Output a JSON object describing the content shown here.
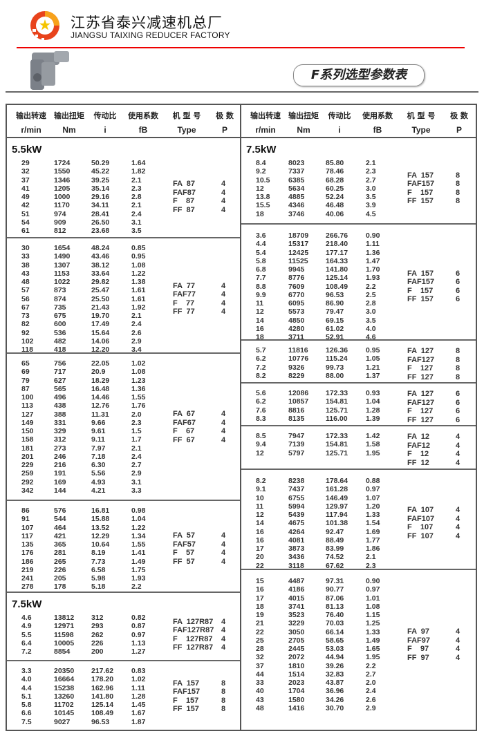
{
  "header": {
    "company_cn": "江苏省泰兴减速机总厂",
    "company_en": "JIANGSU TAIXING REDUCER FACTORY",
    "series_title": "F系列选型参数表",
    "accent_color": "#e00000"
  },
  "columns_cn": [
    "输出转速",
    "输出扭矩",
    "传动比",
    "使用系数",
    "机 型 号",
    "极  数"
  ],
  "columns_en": [
    "r/min",
    "Nm",
    "i",
    "fB",
    "Type",
    "P"
  ],
  "left": [
    {
      "power": "5.5kW",
      "rows": [
        [
          "29",
          "1724",
          "50.29",
          "1.64"
        ],
        [
          "32",
          "1550",
          "45.22",
          "1.82"
        ],
        [
          "37",
          "1346",
          "39.25",
          "2.1"
        ],
        [
          "41",
          "1205",
          "35.14",
          "2.3"
        ],
        [
          "49",
          "1000",
          "29.16",
          "2.8"
        ],
        [
          "42",
          "1170",
          "34.11",
          "2.1"
        ],
        [
          "51",
          "974",
          "28.41",
          "2.4"
        ],
        [
          "54",
          "909",
          "26.50",
          "3.1"
        ],
        [
          "61",
          "812",
          "23.68",
          "3.5"
        ]
      ],
      "types": [
        "FA  87",
        "FAF87",
        "F    87",
        "FF  87"
      ],
      "poles": [
        "4",
        "4",
        "4",
        "4"
      ]
    },
    {
      "rows": [
        [
          "30",
          "1654",
          "48.24",
          "0.85"
        ],
        [
          "33",
          "1490",
          "43.46",
          "0.95"
        ],
        [
          "38",
          "1307",
          "38.12",
          "1.08"
        ],
        [
          "43",
          "1153",
          "33.64",
          "1.22"
        ],
        [
          "48",
          "1022",
          "29.82",
          "1.38"
        ],
        [
          "57",
          "873",
          "25.47",
          "1.61"
        ],
        [
          "56",
          "874",
          "25.50",
          "1.61"
        ],
        [
          "67",
          "735",
          "21.43",
          "1.92"
        ],
        [
          "73",
          "675",
          "19.70",
          "2.1"
        ],
        [
          "82",
          "600",
          "17.49",
          "2.4"
        ],
        [
          "92",
          "536",
          "15.64",
          "2.6"
        ],
        [
          "102",
          "482",
          "14.06",
          "2.9"
        ],
        [
          "118",
          "418",
          "12.20",
          "3.4"
        ]
      ],
      "types": [
        "FA  77",
        "FAF77",
        "F    77",
        "FF  77"
      ],
      "poles": [
        "4",
        "4",
        "4",
        "4"
      ]
    },
    {
      "rows": [
        [
          "65",
          "756",
          "22.05",
          "1.02"
        ],
        [
          "69",
          "717",
          "20.9",
          "1.08"
        ],
        [
          "79",
          "627",
          "18.29",
          "1.23"
        ],
        [
          "87",
          "565",
          "16.48",
          "1.36"
        ],
        [
          "100",
          "496",
          "14.46",
          "1.55"
        ],
        [
          "113",
          "438",
          "12.76",
          "1.76"
        ],
        [
          "127",
          "388",
          "11.31",
          "2.0"
        ],
        [
          "149",
          "331",
          "9.66",
          "2.3"
        ],
        [
          "150",
          "329",
          "9.61",
          "1.5"
        ],
        [
          "158",
          "312",
          "9.11",
          "1.7"
        ],
        [
          "181",
          "273",
          "7.97",
          "2.1"
        ],
        [
          "201",
          "246",
          "7.18",
          "2.4"
        ],
        [
          "229",
          "216",
          "6.30",
          "2.7"
        ],
        [
          "259",
          "191",
          "5.56",
          "2.9"
        ],
        [
          "292",
          "169",
          "4.93",
          "3.1"
        ],
        [
          "342",
          "144",
          "4.21",
          "3.3"
        ]
      ],
      "types": [
        "FA  67",
        "FAF67",
        "F    67",
        "FF  67"
      ],
      "poles": [
        "4",
        "4",
        "4",
        "4"
      ]
    },
    {
      "rows": [
        [
          "86",
          "576",
          "16.81",
          "0.98"
        ],
        [
          "91",
          "544",
          "15.88",
          "1.04"
        ],
        [
          "107",
          "464",
          "13.52",
          "1.22"
        ],
        [
          "117",
          "421",
          "12.29",
          "1.34"
        ],
        [
          "135",
          "365",
          "10.64",
          "1.55"
        ],
        [
          "176",
          "281",
          "8.19",
          "1.41"
        ],
        [
          "186",
          "265",
          "7.73",
          "1.49"
        ],
        [
          "219",
          "226",
          "6.58",
          "1.75"
        ],
        [
          "241",
          "205",
          "5.98",
          "1.93"
        ],
        [
          "278",
          "178",
          "5.18",
          "2.2"
        ]
      ],
      "types": [
        "FA  57",
        "FAF57",
        "F    57",
        "FF  57"
      ],
      "poles": [
        "4",
        "4",
        "4",
        "4"
      ]
    },
    {
      "power": "7.5kW",
      "rows": [
        [
          "4.6",
          "13812",
          "312",
          "0.82"
        ],
        [
          "4.9",
          "12971",
          "293",
          "0.87"
        ],
        [
          "5.5",
          "11598",
          "262",
          "0.97"
        ],
        [
          "6.4",
          "10005",
          "226",
          "1.13"
        ],
        [
          "7.2",
          "8854",
          "200",
          "1.27"
        ]
      ],
      "types": [
        "FA  127R87",
        "FAF127R87",
        "F    127R87",
        "FF  127R87"
      ],
      "poles": [
        "4",
        "4",
        "4",
        "4"
      ]
    },
    {
      "rows": [
        [
          "3.3",
          "20350",
          "217.62",
          "0.83"
        ],
        [
          "4.0",
          "16664",
          "178.20",
          "1.02"
        ],
        [
          "4.4",
          "15238",
          "162.96",
          "1.11"
        ],
        [
          "5.1",
          "13260",
          "141.80",
          "1.28"
        ],
        [
          "5.8",
          "11702",
          "125.14",
          "1.45"
        ],
        [
          "6.6",
          "10145",
          "108.49",
          "1.67"
        ],
        [
          "7.5",
          "9027",
          "96.53",
          "1.87"
        ]
      ],
      "types": [
        "FA  157",
        "FAF157",
        "F    157",
        "FF  157"
      ],
      "poles": [
        "8",
        "8",
        "8",
        "8"
      ]
    }
  ],
  "right": [
    {
      "power": "7.5kW",
      "rows": [
        [
          "8.4",
          "8023",
          "85.80",
          "2.1"
        ],
        [
          "9.2",
          "7337",
          "78.46",
          "2.3"
        ],
        [
          "10.5",
          "6385",
          "68.28",
          "2.7"
        ],
        [
          "12",
          "5634",
          "60.25",
          "3.0"
        ],
        [
          "13.8",
          "4885",
          "52.24",
          "3.5"
        ],
        [
          "15.5",
          "4346",
          "46.48",
          "3.9"
        ],
        [
          "18",
          "3746",
          "40.06",
          "4.5"
        ]
      ],
      "types": [
        "FA  157",
        "FAF157",
        "F    157",
        "FF  157"
      ],
      "poles": [
        "8",
        "8",
        "8",
        "8"
      ]
    },
    {
      "rows": [
        [
          "3.6",
          "18709",
          "266.76",
          "0.90"
        ],
        [
          "4.4",
          "15317",
          "218.40",
          "1.11"
        ],
        [
          "5.4",
          "12425",
          "177.17",
          "1.36"
        ],
        [
          "5.8",
          "11525",
          "164.33",
          "1.47"
        ],
        [
          "6.8",
          "9945",
          "141.80",
          "1.70"
        ],
        [
          "7.7",
          "8776",
          "125.14",
          "1.93"
        ],
        [
          "8.8",
          "7609",
          "108.49",
          "2.2"
        ],
        [
          "9.9",
          "6770",
          "96.53",
          "2.5"
        ],
        [
          "11",
          "6095",
          "86.90",
          "2.8"
        ],
        [
          "12",
          "5573",
          "79.47",
          "3.0"
        ],
        [
          "14",
          "4850",
          "69.15",
          "3.5"
        ],
        [
          "16",
          "4280",
          "61.02",
          "4.0"
        ],
        [
          "18",
          "3711",
          "52.91",
          "4.6"
        ]
      ],
      "types": [
        "FA  157",
        "FAF157",
        "F    157",
        "FF  157"
      ],
      "poles": [
        "6",
        "6",
        "6",
        "6"
      ]
    },
    {
      "rows": [
        [
          "5.7",
          "11816",
          "126.36",
          "0.95"
        ],
        [
          "6.2",
          "10776",
          "115.24",
          "1.05"
        ],
        [
          "7.2",
          "9326",
          "99.73",
          "1.21"
        ],
        [
          "8.2",
          "8229",
          "88.00",
          "1.37"
        ]
      ],
      "types": [
        "FA  127",
        "FAF127",
        "F    127",
        "FF  127"
      ],
      "poles": [
        "8",
        "8",
        "8",
        "8"
      ]
    },
    {
      "rows": [
        [
          "5.6",
          "12086",
          "172.33",
          "0.93"
        ],
        [
          "6.2",
          "10857",
          "154.81",
          "1.04"
        ],
        [
          "7.6",
          "8816",
          "125.71",
          "1.28"
        ],
        [
          "8.3",
          "8135",
          "116.00",
          "1.39"
        ]
      ],
      "types": [
        "FA  127",
        "FAF127",
        "F    127",
        "FF  127"
      ],
      "poles": [
        "6",
        "6",
        "6",
        "6"
      ]
    },
    {
      "rows": [
        [
          "8.5",
          "7947",
          "172.33",
          "1.42"
        ],
        [
          "9.4",
          "7139",
          "154.81",
          "1.58"
        ],
        [
          "12",
          "5797",
          "125.71",
          "1.95"
        ]
      ],
      "types": [
        "FA  12",
        "FAF12",
        "F    12",
        "FF  12"
      ],
      "poles": [
        "4",
        "4",
        "4",
        "4"
      ]
    },
    {
      "rows": [
        [
          "8.2",
          "8238",
          "178.64",
          "0.88"
        ],
        [
          "9.1",
          "7437",
          "161.28",
          "0.97"
        ],
        [
          "10",
          "6755",
          "146.49",
          "1.07"
        ],
        [
          "11",
          "5994",
          "129.97",
          "1.20"
        ],
        [
          "12",
          "5439",
          "117.94",
          "1.33"
        ],
        [
          "14",
          "4675",
          "101.38",
          "1.54"
        ],
        [
          "16",
          "4264",
          "92.47",
          "1.69"
        ],
        [
          "16",
          "4081",
          "88.49",
          "1.77"
        ],
        [
          "17",
          "3873",
          "83.99",
          "1.86"
        ],
        [
          "20",
          "3436",
          "74.52",
          "2.1"
        ],
        [
          "22",
          "3118",
          "67.62",
          "2.3"
        ]
      ],
      "types": [
        "FA  107",
        "FAF107",
        "F    107",
        "FF  107"
      ],
      "poles": [
        "4",
        "4",
        "4",
        "4"
      ]
    },
    {
      "rows": [
        [
          "15",
          "4487",
          "97.31",
          "0.90"
        ],
        [
          "16",
          "4186",
          "90.77",
          "0.97"
        ],
        [
          "17",
          "4015",
          "87.06",
          "1.01"
        ],
        [
          "18",
          "3741",
          "81.13",
          "1.08"
        ],
        [
          "19",
          "3523",
          "76.40",
          "1.15"
        ],
        [
          "21",
          "3229",
          "70.03",
          "1.25"
        ],
        [
          "22",
          "3050",
          "66.14",
          "1.33"
        ],
        [
          "25",
          "2705",
          "58.65",
          "1.49"
        ],
        [
          "28",
          "2445",
          "53.03",
          "1.65"
        ],
        [
          "32",
          "2072",
          "44.94",
          "1.95"
        ],
        [
          "37",
          "1810",
          "39.26",
          "2.2"
        ],
        [
          "44",
          "1514",
          "32.83",
          "2.7"
        ],
        [
          "33",
          "2023",
          "43.87",
          "2.0"
        ],
        [
          "40",
          "1704",
          "36.96",
          "2.4"
        ],
        [
          "43",
          "1580",
          "34.26",
          "2.6"
        ],
        [
          "48",
          "1416",
          "30.70",
          "2.9"
        ]
      ],
      "types": [
        "FA  97",
        "FAF97",
        "F    97",
        "FF  97"
      ],
      "poles": [
        "4",
        "4",
        "4",
        "4"
      ]
    }
  ]
}
